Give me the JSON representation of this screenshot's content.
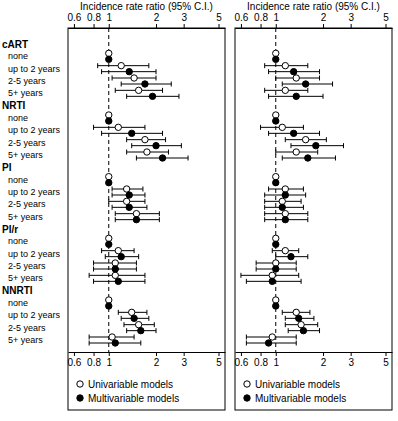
{
  "chart_data": {
    "type": "forest",
    "xlabel": "Incidence rate ratio (95% C.I.)",
    "log": "x",
    "xlim": [
      0.55,
      5.5
    ],
    "xticks": [
      0.6,
      0.8,
      1,
      2,
      3,
      5
    ],
    "reference": 1,
    "groups": [
      {
        "name": "cART",
        "categories": [
          "none",
          "up to 2 years",
          "2-5 years",
          "5+ years"
        ]
      },
      {
        "name": "NRTI",
        "categories": [
          "none",
          "up to 2 years",
          "2-5 years",
          "5+ years"
        ]
      },
      {
        "name": "PI",
        "categories": [
          "none",
          "up to 2 years",
          "2-5 years",
          "5+ years"
        ]
      },
      {
        "name": "PI/r",
        "categories": [
          "none",
          "up to 2 years",
          "2-5 years",
          "5+ years"
        ]
      },
      {
        "name": "NNRTI",
        "categories": [
          "none",
          "up to 2 years",
          "2-5 years",
          "5+ years"
        ]
      }
    ],
    "panels": [
      {
        "series": [
          {
            "name": "Univariable models",
            "marker": "circle-open",
            "color": "#000000",
            "values": [
              1,
              1.2,
              1.45,
              1.55,
              1,
              1.15,
              1.7,
              1.75,
              1,
              1.3,
              1.3,
              1.5,
              1,
              1.15,
              1.1,
              1.1,
              1,
              1.4,
              1.55,
              1.05
            ],
            "ci_lower": [
              null,
              0.85,
              1.05,
              1.1,
              null,
              0.8,
              1.3,
              1.3,
              null,
              1.05,
              1.0,
              1.1,
              null,
              0.9,
              0.8,
              0.75,
              null,
              1.15,
              1.25,
              0.75
            ],
            "ci_upper": [
              null,
              1.8,
              2.0,
              2.2,
              null,
              1.7,
              2.3,
              2.4,
              null,
              1.65,
              1.7,
              2.1,
              null,
              1.45,
              1.5,
              1.7,
              null,
              1.75,
              1.95,
              1.45
            ]
          },
          {
            "name": "Multivariable models",
            "marker": "circle",
            "color": "#000000",
            "values": [
              1,
              1.35,
              1.7,
              1.9,
              1,
              1.4,
              2.0,
              2.2,
              1,
              1.35,
              1.35,
              1.5,
              1,
              1.2,
              1.1,
              1.15,
              1,
              1.45,
              1.6,
              1.1
            ],
            "ci_lower": [
              null,
              0.9,
              1.2,
              1.3,
              null,
              0.9,
              1.4,
              1.5,
              null,
              1.05,
              1.05,
              1.1,
              null,
              0.95,
              0.8,
              0.8,
              null,
              1.2,
              1.3,
              0.75
            ],
            "ci_upper": [
              null,
              2.0,
              2.5,
              2.8,
              null,
              2.2,
              2.9,
              3.2,
              null,
              1.7,
              1.75,
              2.1,
              null,
              1.55,
              1.5,
              1.7,
              null,
              1.8,
              2.0,
              1.6
            ]
          }
        ]
      },
      {
        "series": [
          {
            "name": "Univariable models",
            "marker": "circle-open",
            "color": "#000000",
            "values": [
              1,
              1.15,
              1.35,
              1.15,
              1,
              1.1,
              1.55,
              1.35,
              1,
              1.15,
              1.1,
              1.15,
              1,
              1.15,
              1.0,
              0.95,
              1,
              1.35,
              1.45,
              0.95
            ],
            "ci_lower": [
              null,
              0.85,
              1.0,
              0.85,
              null,
              0.8,
              1.15,
              1.0,
              null,
              0.9,
              0.85,
              0.85,
              null,
              0.95,
              0.75,
              0.6,
              null,
              1.1,
              1.15,
              0.65
            ],
            "ci_upper": [
              null,
              1.6,
              1.9,
              1.6,
              null,
              1.5,
              2.1,
              1.85,
              null,
              1.5,
              1.45,
              1.6,
              null,
              1.4,
              1.35,
              1.4,
              null,
              1.65,
              1.85,
              1.35
            ]
          },
          {
            "name": "Multivariable models",
            "marker": "circle",
            "color": "#000000",
            "values": [
              1,
              1.3,
              1.55,
              1.35,
              1,
              1.3,
              1.8,
              1.6,
              1,
              1.15,
              1.1,
              1.15,
              1,
              1.25,
              1.0,
              0.95,
              1,
              1.4,
              1.5,
              0.9
            ],
            "ci_lower": [
              null,
              0.9,
              1.1,
              0.9,
              null,
              0.9,
              1.25,
              1.1,
              null,
              0.85,
              0.85,
              0.85,
              null,
              1.0,
              0.75,
              0.65,
              null,
              1.15,
              1.2,
              0.65
            ],
            "ci_upper": [
              null,
              1.9,
              2.3,
              2.0,
              null,
              1.9,
              2.7,
              2.4,
              null,
              1.55,
              1.5,
              1.6,
              null,
              1.6,
              1.35,
              1.45,
              null,
              1.75,
              1.9,
              1.35
            ]
          }
        ]
      }
    ]
  }
}
